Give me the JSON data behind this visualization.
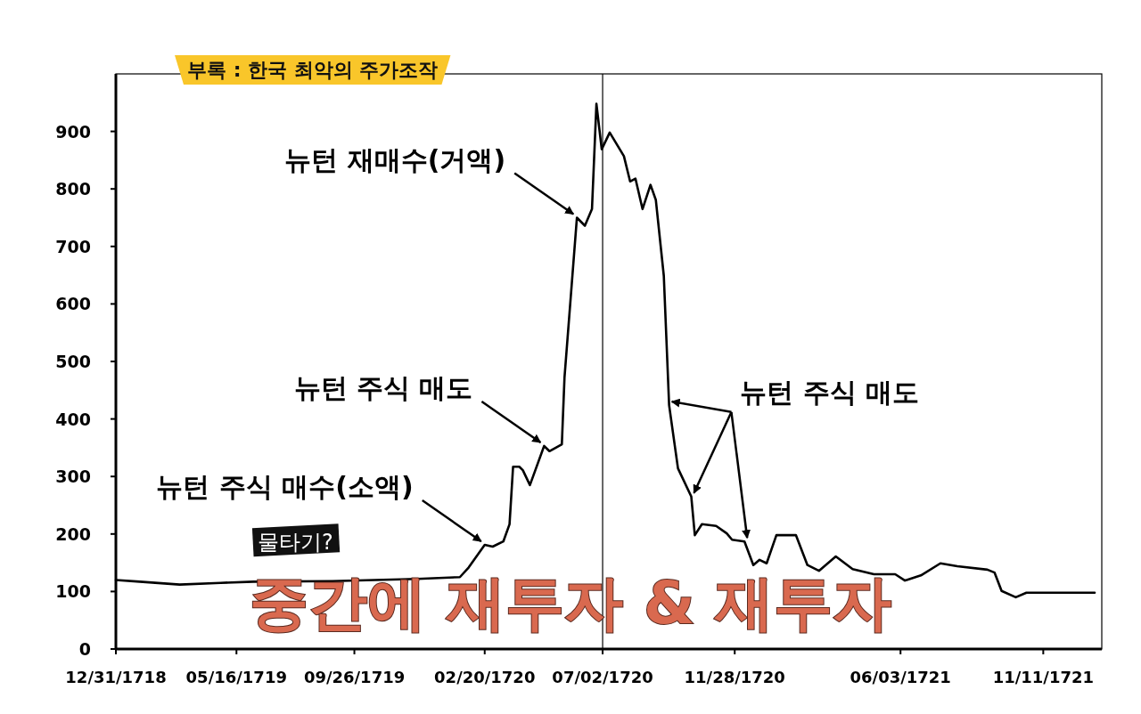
{
  "chart_data": {
    "type": "line",
    "title": "부록 : 한국 최악의 주가조작",
    "x": [
      "1718-12-31",
      "1719-01-27",
      "1719-03-13",
      "1719-04-28",
      "1719-06-04",
      "1719-09-01",
      "1719-12-06",
      "1720-01-23",
      "1720-02-02",
      "1720-02-20",
      "1720-02-29",
      "1720-03-12",
      "1720-03-19",
      "1720-03-23",
      "1720-03-30",
      "1720-04-03",
      "1720-04-11",
      "1720-04-27",
      "1720-05-03",
      "1720-05-17",
      "1720-05-20",
      "1720-06-03",
      "1720-06-12",
      "1720-06-20",
      "1720-06-25",
      "1720-07-01",
      "1720-07-10",
      "1720-07-26",
      "1720-08-02",
      "1720-08-08",
      "1720-08-16",
      "1720-08-25",
      "1720-08-31",
      "1720-09-09",
      "1720-09-15",
      "1720-09-25",
      "1720-10-10",
      "1720-10-14",
      "1720-10-22",
      "1720-11-07",
      "1720-11-19",
      "1720-11-25",
      "1720-12-09",
      "1720-12-19",
      "1720-12-26",
      "1721-01-03",
      "1721-01-14",
      "1721-02-05",
      "1721-02-18",
      "1721-03-03",
      "1721-03-22",
      "1721-04-10",
      "1721-05-04",
      "1721-05-28",
      "1721-06-08",
      "1721-06-26",
      "1721-07-18",
      "1721-08-06",
      "1721-09-09",
      "1721-09-17",
      "1721-09-25",
      "1721-10-11",
      "1721-10-23",
      "1721-11-14",
      "1722-01-08"
    ],
    "series": [
      {
        "color": "#000000",
        "values": [
          120,
          117,
          112,
          115,
          117,
          118,
          122,
          125,
          142,
          181,
          178,
          187,
          217,
          317,
          317,
          311,
          285,
          353,
          344,
          356,
          472,
          750,
          736,
          765,
          948,
          869,
          898,
          857,
          813,
          818,
          765,
          807,
          781,
          649,
          424,
          314,
          265,
          198,
          217,
          214,
          201,
          190,
          187,
          146,
          155,
          149,
          198,
          198,
          146,
          136,
          161,
          139,
          130,
          130,
          119,
          128,
          149,
          144,
          138,
          133,
          101,
          90,
          98,
          98,
          98
        ]
      }
    ],
    "xlim": [
      "1718-12-31",
      "1722-01-16"
    ],
    "xticks": [
      {
        "value": "1718-12-31",
        "label": "12/31/1718"
      },
      {
        "value": "1719-05-16",
        "label": "05/16/1719"
      },
      {
        "value": "1719-09-26",
        "label": "09/26/1719"
      },
      {
        "value": "1720-02-20",
        "label": "02/20/1720"
      },
      {
        "value": "1720-07-02",
        "label": "07/02/1720"
      },
      {
        "value": "1720-11-28",
        "label": "11/28/1720"
      },
      {
        "value": "1721-06-03",
        "label": "06/03/1721"
      },
      {
        "value": "1721-11-11",
        "label": "11/11/1721"
      }
    ],
    "ylim": [
      0,
      1000
    ],
    "yticks": [
      0,
      100,
      200,
      300,
      400,
      500,
      600,
      700,
      800,
      900
    ],
    "ref_lines": [
      {
        "axis": "x",
        "value": "1720-07-02",
        "color": "#000000"
      }
    ],
    "annotations": [
      {
        "text": "뉴턴 주식 매수(소액)",
        "x": "1720-02-20",
        "y": 181
      },
      {
        "text": "뉴턴 주식 매도",
        "x": "1720-04-27",
        "y": 353
      },
      {
        "text": "뉴턴 재매수(거액)",
        "x": "1720-06-03",
        "y": 750
      },
      {
        "text": "뉴턴 주식 매도",
        "x": "1720-10-10",
        "y": 265
      },
      "물타기?",
      "중간에 재투자 & 재투자"
    ],
    "marker": "none",
    "line_style": "solid"
  }
}
